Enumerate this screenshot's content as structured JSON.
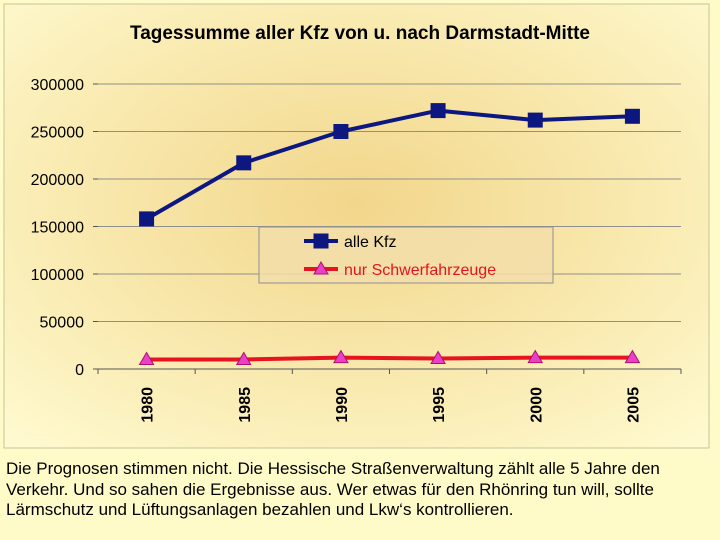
{
  "chart_data": {
    "type": "line",
    "title": "Tagessumme aller Kfz von u. nach Darmstadt-Mitte",
    "xlabel": "",
    "ylabel": "",
    "categories": [
      "1980",
      "1985",
      "1990",
      "1995",
      "2000",
      "2005"
    ],
    "yticks": [
      "0",
      "50000",
      "100000",
      "150000",
      "200000",
      "250000",
      "300000"
    ],
    "ylim": [
      0,
      300000
    ],
    "grid": true,
    "legend_position": "center",
    "series": [
      {
        "name": "alle Kfz",
        "values": [
          158000,
          217000,
          250000,
          272000,
          262000,
          266000
        ],
        "color": "#0d1780",
        "marker": "square"
      },
      {
        "name": "nur Schwerfahrzeuge",
        "values": [
          10000,
          10000,
          12000,
          11000,
          12000,
          12000
        ],
        "color": "#e5141e",
        "marker_color": "#e940c8",
        "marker": "triangle"
      }
    ]
  },
  "caption": "Die Prognosen stimmen nicht. Die Hessische Straßenverwaltung zählt alle 5 Jahre den Verkehr. Und so sahen die Ergebnisse aus. Wer etwas für den Rhönring tun will, sollte Lärmschutz und Lüftungsanlagen bezahlen und Lkw‘s kontrollieren."
}
